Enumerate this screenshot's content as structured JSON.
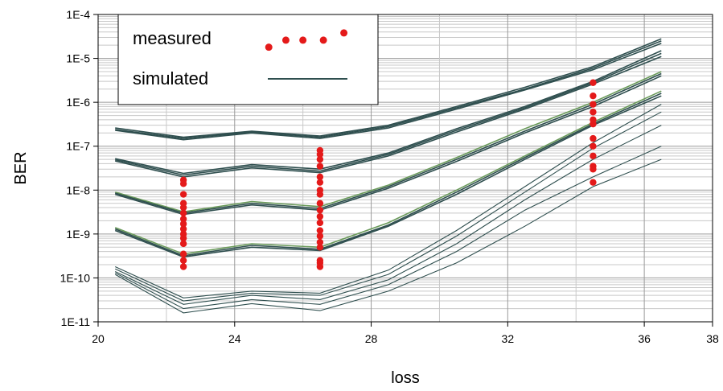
{
  "chart_data": {
    "type": "line",
    "xlabel": "loss",
    "ylabel": "BER",
    "xlim": [
      20,
      38
    ],
    "ylim": [
      1e-11,
      0.0001
    ],
    "y_scale": "log",
    "x_ticks": [
      20,
      24,
      28,
      32,
      36,
      38
    ],
    "y_ticks": [
      {
        "value": 1e-11,
        "label": "1E-11"
      },
      {
        "value": 1e-10,
        "label": "1E-10"
      },
      {
        "value": 1e-09,
        "label": "1E-9"
      },
      {
        "value": 1e-08,
        "label": "1E-8"
      },
      {
        "value": 1e-07,
        "label": "1E-7"
      },
      {
        "value": 1e-06,
        "label": "1E-6"
      },
      {
        "value": 1e-05,
        "label": "1E-5"
      },
      {
        "value": 0.0001,
        "label": "1E-4"
      }
    ],
    "grid": true,
    "legend": {
      "position": "top-left",
      "entries": [
        {
          "label": "measured",
          "marker": "dot",
          "color": "#e41a1a"
        },
        {
          "label": "simulated",
          "marker": "line",
          "color": "#2f4f4f"
        }
      ]
    },
    "simulated": {
      "color": "#2f4f4f",
      "accent_color": "#6a9a5a",
      "x": [
        20.5,
        22.5,
        24.5,
        26.5,
        28.5,
        30.5,
        32.5,
        34.5,
        36.5
      ],
      "series": [
        {
          "values": [
            2.6e-07,
            1.6e-07,
            2.2e-07,
            1.7e-07,
            3e-07,
            8e-07,
            2.2e-06,
            6.5e-06,
            2.8e-05
          ]
        },
        {
          "values": [
            2.4e-07,
            1.5e-07,
            2.1e-07,
            1.6e-07,
            2.8e-07,
            7.5e-07,
            2e-06,
            6e-06,
            2.5e-05
          ]
        },
        {
          "values": [
            2.3e-07,
            1.4e-07,
            2e-07,
            1.5e-07,
            2.6e-07,
            7e-07,
            1.9e-06,
            5.5e-06,
            2.2e-05
          ]
        },
        {
          "values": [
            5.2e-08,
            2.4e-08,
            3.8e-08,
            3e-08,
            7e-08,
            2.5e-07,
            8e-07,
            3e-06,
            1.5e-05
          ]
        },
        {
          "values": [
            4.9e-08,
            2.2e-08,
            3.5e-08,
            2.7e-08,
            6.5e-08,
            2.3e-07,
            7.5e-07,
            2.8e-06,
            1.3e-05
          ]
        },
        {
          "values": [
            4.6e-08,
            2e-08,
            3.2e-08,
            2.5e-08,
            6e-08,
            2.1e-07,
            7e-07,
            2.6e-06,
            1.1e-05
          ]
        },
        {
          "values": [
            9e-09,
            3.2e-09,
            5.5e-09,
            4.2e-09,
            1.3e-08,
            5.5e-08,
            2.5e-07,
            1e-06,
            5e-06
          ]
        },
        {
          "values": [
            8.5e-09,
            3e-09,
            5e-09,
            3.8e-09,
            1.2e-08,
            5e-08,
            2.2e-07,
            9e-07,
            4.5e-06
          ]
        },
        {
          "values": [
            8e-09,
            2.8e-09,
            4.6e-09,
            3.5e-09,
            1.1e-08,
            4.5e-08,
            2e-07,
            8e-07,
            4e-06
          ]
        },
        {
          "values": [
            1.4e-09,
            3.5e-10,
            6e-10,
            5e-10,
            1.8e-09,
            1e-08,
            6e-08,
            3.5e-07,
            1.8e-06
          ]
        },
        {
          "values": [
            1.3e-09,
            3.2e-10,
            5.5e-10,
            4.5e-10,
            1.6e-09,
            9e-09,
            5.5e-08,
            3.2e-07,
            1.6e-06
          ]
        },
        {
          "values": [
            1.2e-09,
            3e-10,
            5e-10,
            4.2e-10,
            1.5e-09,
            8e-09,
            5e-08,
            3e-07,
            1.4e-06
          ]
        },
        {
          "values": [
            1.8e-10,
            3.5e-11,
            5e-11,
            4.5e-11,
            1.5e-10,
            1.2e-09,
            1.2e-08,
            1.2e-07,
            9e-07
          ]
        },
        {
          "values": [
            1.6e-10,
            3e-11,
            4.5e-11,
            4e-11,
            1.2e-10,
            9e-10,
            9e-09,
            9e-08,
            6e-07
          ]
        },
        {
          "values": [
            1.4e-10,
            2.5e-11,
            4e-11,
            3.2e-11,
            9e-11,
            6e-10,
            6e-09,
            5e-08,
            3e-07
          ]
        },
        {
          "values": [
            1.3e-10,
            2e-11,
            3.2e-11,
            2.5e-11,
            7e-11,
            4e-10,
            3.5e-09,
            2e-08,
            1e-07
          ]
        },
        {
          "values": [
            1.2e-10,
            1.6e-11,
            2.6e-11,
            1.8e-11,
            5e-11,
            2.2e-10,
            1.5e-09,
            1.2e-08,
            5e-08
          ]
        }
      ]
    },
    "measured": {
      "color": "#e41a1a",
      "points": [
        {
          "x": 22.5,
          "y": 1.7e-08
        },
        {
          "x": 22.5,
          "y": 1.4e-08
        },
        {
          "x": 22.5,
          "y": 8e-09
        },
        {
          "x": 22.5,
          "y": 5e-09
        },
        {
          "x": 22.5,
          "y": 4e-09
        },
        {
          "x": 22.5,
          "y": 3e-09
        },
        {
          "x": 22.5,
          "y": 2.2e-09
        },
        {
          "x": 22.5,
          "y": 1.7e-09
        },
        {
          "x": 22.5,
          "y": 1.3e-09
        },
        {
          "x": 22.5,
          "y": 1e-09
        },
        {
          "x": 22.5,
          "y": 8e-10
        },
        {
          "x": 22.5,
          "y": 6e-10
        },
        {
          "x": 22.5,
          "y": 3.5e-10
        },
        {
          "x": 22.5,
          "y": 2.5e-10
        },
        {
          "x": 22.5,
          "y": 1.8e-10
        },
        {
          "x": 26.5,
          "y": 8e-08
        },
        {
          "x": 26.5,
          "y": 6.5e-08
        },
        {
          "x": 26.5,
          "y": 5e-08
        },
        {
          "x": 26.5,
          "y": 3.5e-08
        },
        {
          "x": 26.5,
          "y": 2e-08
        },
        {
          "x": 26.5,
          "y": 1.5e-08
        },
        {
          "x": 26.5,
          "y": 1e-08
        },
        {
          "x": 26.5,
          "y": 8e-09
        },
        {
          "x": 26.5,
          "y": 5e-09
        },
        {
          "x": 26.5,
          "y": 3.5e-09
        },
        {
          "x": 26.5,
          "y": 2.5e-09
        },
        {
          "x": 26.5,
          "y": 1.8e-09
        },
        {
          "x": 26.5,
          "y": 1.2e-09
        },
        {
          "x": 26.5,
          "y": 9e-10
        },
        {
          "x": 26.5,
          "y": 6.5e-10
        },
        {
          "x": 26.5,
          "y": 5e-10
        },
        {
          "x": 26.5,
          "y": 2.5e-10
        },
        {
          "x": 26.5,
          "y": 2.2e-10
        },
        {
          "x": 26.5,
          "y": 1.8e-10
        },
        {
          "x": 34.5,
          "y": 2.8e-06
        },
        {
          "x": 34.5,
          "y": 1.4e-06
        },
        {
          "x": 34.5,
          "y": 9e-07
        },
        {
          "x": 34.5,
          "y": 6e-07
        },
        {
          "x": 34.5,
          "y": 4e-07
        },
        {
          "x": 34.5,
          "y": 3.2e-07
        },
        {
          "x": 34.5,
          "y": 1.5e-07
        },
        {
          "x": 34.5,
          "y": 1e-07
        },
        {
          "x": 34.5,
          "y": 6e-08
        },
        {
          "x": 34.5,
          "y": 3.5e-08
        },
        {
          "x": 34.5,
          "y": 3e-08
        },
        {
          "x": 34.5,
          "y": 1.5e-08
        }
      ],
      "legend_sample": [
        {
          "x": 25.0,
          "y": 1.8e-05
        },
        {
          "x": 25.5,
          "y": 2.6e-05
        },
        {
          "x": 26.0,
          "y": 2.6e-05
        },
        {
          "x": 26.6,
          "y": 2.6e-05
        },
        {
          "x": 27.2,
          "y": 3.8e-05
        }
      ]
    }
  }
}
